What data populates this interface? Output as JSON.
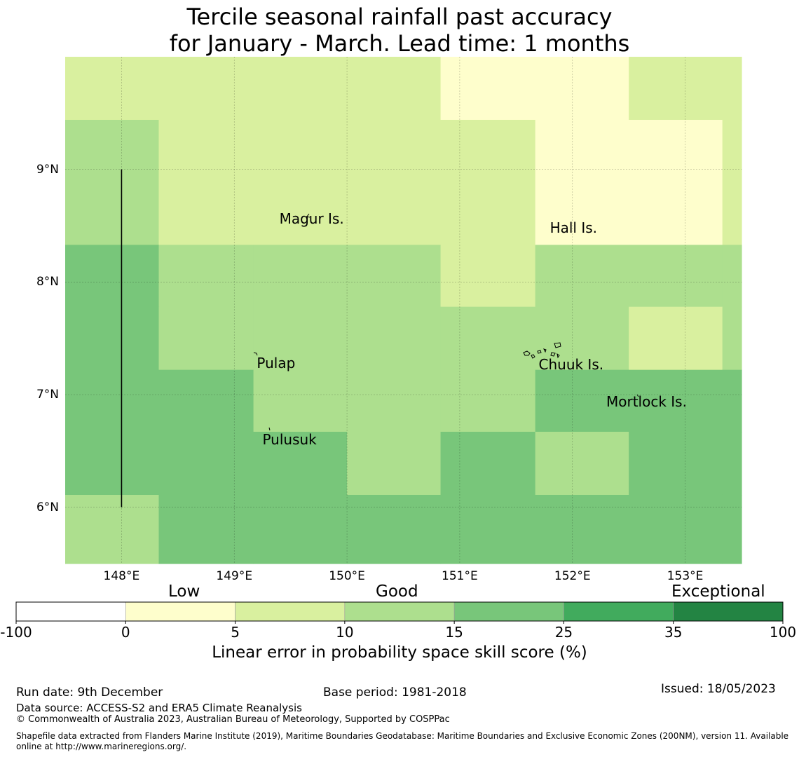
{
  "title": {
    "line1": "Tercile seasonal rainfall past accuracy",
    "line2": "for January - March. Lead time: 1 months"
  },
  "map": {
    "lon_range": [
      147.5,
      153.5
    ],
    "lat_range": [
      5.5,
      10.0
    ],
    "lon_ticks": [
      148,
      149,
      150,
      151,
      152,
      153
    ],
    "lat_ticks": [
      6,
      7,
      8,
      9
    ],
    "lon_tick_labels": [
      "148°E",
      "149°E",
      "150°E",
      "151°E",
      "152°E",
      "153°E"
    ],
    "lat_tick_labels": [
      "9°N",
      "8°N",
      "7°N",
      "6°N"
    ],
    "grid_lon_edges": [
      147.5,
      148.33,
      149.17,
      150.0,
      150.83,
      151.67,
      152.5,
      153.33,
      153.5
    ],
    "grid_lat_edges": [
      10.0,
      9.44,
      8.33,
      7.78,
      7.22,
      6.67,
      6.11,
      5.5
    ],
    "skill_categories": [
      [
        2,
        2,
        2,
        2,
        1,
        1,
        2,
        2
      ],
      [
        3,
        2,
        2,
        2,
        2,
        1,
        1,
        2
      ],
      [
        4,
        3,
        3,
        3,
        2,
        3,
        3,
        3
      ],
      [
        4,
        3,
        3,
        3,
        3,
        3,
        2,
        3
      ],
      [
        4,
        4,
        3,
        3,
        3,
        4,
        4,
        4
      ],
      [
        4,
        4,
        4,
        3,
        4,
        3,
        4,
        4
      ],
      [
        3,
        4,
        4,
        4,
        4,
        4,
        4,
        4
      ]
    ],
    "boundary_line": {
      "lon": 148.0,
      "lat_from": 6.0,
      "lat_to": 9.0
    },
    "places": [
      {
        "name": "Magur Is.",
        "lon": 149.4,
        "lat": 8.56
      },
      {
        "name": "Hall Is.",
        "lon": 151.8,
        "lat": 8.48
      },
      {
        "name": "Pulap",
        "lon": 149.2,
        "lat": 7.28
      },
      {
        "name": "Chuuk Is.",
        "lon": 151.7,
        "lat": 7.27
      },
      {
        "name": "Mortlock Is.",
        "lon": 152.3,
        "lat": 6.94
      },
      {
        "name": "Pulusuk",
        "lon": 149.25,
        "lat": 6.6
      }
    ]
  },
  "colorbar": {
    "category_labels": [
      "Low",
      "Good",
      "Exceptional"
    ],
    "tick_labels": [
      "-100",
      "0",
      "5",
      "10",
      "15",
      "25",
      "35",
      "100"
    ],
    "colors": [
      "#ffffff",
      "#fefecc",
      "#d9f09f",
      "#addf8e",
      "#78c67a",
      "#41ab5d",
      "#238443"
    ],
    "title": "Linear error in probability space skill score (%)"
  },
  "footer": {
    "run_date": "Run date: 9th December",
    "base_period": "Base period: 1981-2018",
    "issued": "Issued: 18/05/2023",
    "data_source": "Data source: ACCESS-S2 and ERA5 Climate Reanalysis",
    "copyright": "© Commonwealth of Australia 2023, Australian Bureau of Meteorology, Supported by COSPPac",
    "shapefile_line1": "Shapefile data extracted from Flanders Marine Institute (2019), Maritime Boundaries Geodatabase: Maritime Boundaries and Exclusive Economic Zones (200NM), version 11. Available",
    "shapefile_line2": "online at http://www.marineregions.org/."
  }
}
